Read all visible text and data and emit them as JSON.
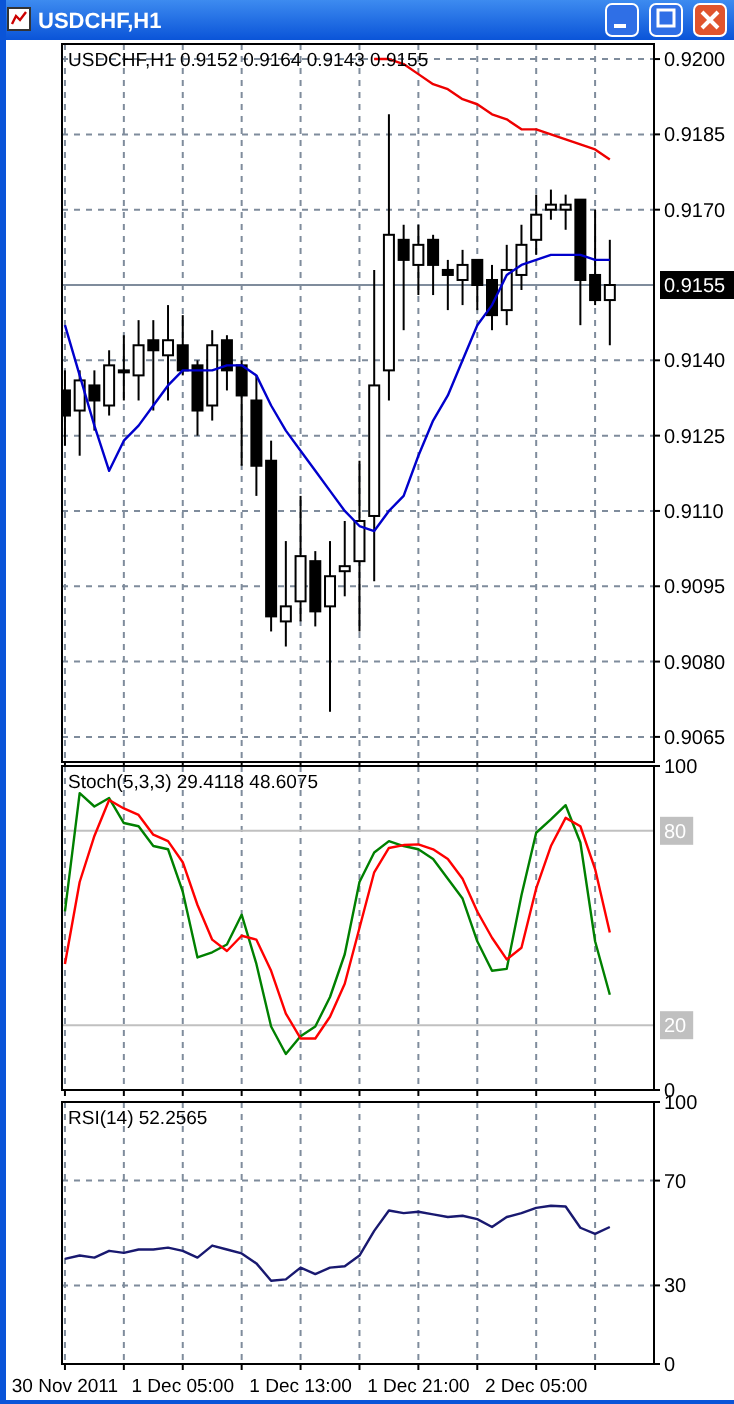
{
  "chart_data": [
    {
      "type": "candlestick",
      "title": "USDCHF,H1",
      "subtitle": "USDCHF,H1  0.9152 0.9164 0.9143 0.9155",
      "x": [
        "2011-11-30T21:00",
        "2011-11-30T22:00",
        "2011-11-30T23:00",
        "2011-12-01T00:00",
        "2011-12-01T01:00",
        "2011-12-01T02:00",
        "2011-12-01T03:00",
        "2011-12-01T04:00",
        "2011-12-01T05:00",
        "2011-12-01T06:00",
        "2011-12-01T07:00",
        "2011-12-01T08:00",
        "2011-12-01T09:00",
        "2011-12-01T10:00",
        "2011-12-01T11:00",
        "2011-12-01T12:00",
        "2011-12-01T13:00",
        "2011-12-01T14:00",
        "2011-12-01T15:00",
        "2011-12-01T16:00",
        "2011-12-01T17:00",
        "2011-12-01T18:00",
        "2011-12-01T19:00",
        "2011-12-01T20:00",
        "2011-12-01T21:00",
        "2011-12-01T22:00",
        "2011-12-01T23:00",
        "2011-12-02T00:00",
        "2011-12-02T01:00",
        "2011-12-02T02:00",
        "2011-12-02T03:00",
        "2011-12-02T04:00",
        "2011-12-02T05:00",
        "2011-12-02T06:00",
        "2011-12-02T07:00",
        "2011-12-02T08:00",
        "2011-12-02T09:00",
        "2011-12-02T10:00"
      ],
      "ohlc": [
        [
          0.9134,
          0.9138,
          0.9123,
          0.9129
        ],
        [
          0.913,
          0.9138,
          0.9121,
          0.9136
        ],
        [
          0.9135,
          0.9138,
          0.9126,
          0.9132
        ],
        [
          0.9131,
          0.9142,
          0.9129,
          0.9139
        ],
        [
          0.9138,
          0.9145,
          0.9132,
          0.9138
        ],
        [
          0.9137,
          0.9148,
          0.9132,
          0.9143
        ],
        [
          0.9144,
          0.9148,
          0.913,
          0.9142
        ],
        [
          0.9141,
          0.9151,
          0.9132,
          0.9144
        ],
        [
          0.9143,
          0.9149,
          0.9137,
          0.9138
        ],
        [
          0.9139,
          0.914,
          0.9125,
          0.913
        ],
        [
          0.9131,
          0.9146,
          0.9128,
          0.9143
        ],
        [
          0.9144,
          0.9145,
          0.9134,
          0.9138
        ],
        [
          0.9139,
          0.914,
          0.9119,
          0.9133
        ],
        [
          0.9132,
          0.9137,
          0.9113,
          0.9119
        ],
        [
          0.912,
          0.9124,
          0.9086,
          0.9089
        ],
        [
          0.9088,
          0.9104,
          0.9083,
          0.9091
        ],
        [
          0.9092,
          0.9113,
          0.9088,
          0.9101
        ],
        [
          0.91,
          0.9102,
          0.9087,
          0.909
        ],
        [
          0.9091,
          0.9104,
          0.907,
          0.9097
        ],
        [
          0.9098,
          0.9108,
          0.9093,
          0.9099
        ],
        [
          0.91,
          0.912,
          0.9086,
          0.9108
        ],
        [
          0.9109,
          0.9158,
          0.9096,
          0.9135
        ],
        [
          0.9138,
          0.9189,
          0.9132,
          0.9165
        ],
        [
          0.9164,
          0.9167,
          0.9146,
          0.916
        ],
        [
          0.9159,
          0.9167,
          0.9153,
          0.9163
        ],
        [
          0.9164,
          0.9165,
          0.9153,
          0.9159
        ],
        [
          0.9158,
          0.916,
          0.915,
          0.9157
        ],
        [
          0.9156,
          0.9162,
          0.9151,
          0.9159
        ],
        [
          0.916,
          0.916,
          0.915,
          0.9155
        ],
        [
          0.9156,
          0.9159,
          0.9146,
          0.9149
        ],
        [
          0.915,
          0.9163,
          0.9147,
          0.9158
        ],
        [
          0.9157,
          0.9167,
          0.9154,
          0.9163
        ],
        [
          0.9164,
          0.9173,
          0.9161,
          0.9169
        ],
        [
          0.917,
          0.9174,
          0.9168,
          0.9171
        ],
        [
          0.917,
          0.9173,
          0.9166,
          0.9171
        ],
        [
          0.9172,
          0.9172,
          0.9147,
          0.9156
        ],
        [
          0.9157,
          0.917,
          0.9151,
          0.9152
        ],
        [
          0.9152,
          0.9164,
          0.9143,
          0.9155
        ]
      ],
      "series": [
        {
          "type": "line",
          "color": "#0000cc",
          "values": [
            0.9147,
            0.9137,
            0.9127,
            0.9118,
            0.9124,
            0.9127,
            0.9131,
            0.9135,
            0.9138,
            0.9138,
            0.9138,
            0.9139,
            0.9139,
            0.9137,
            0.9131,
            0.9126,
            0.9122,
            0.9118,
            0.9114,
            0.911,
            0.9107,
            0.9106,
            0.911,
            0.9113,
            0.9121,
            0.9128,
            0.9133,
            0.914,
            0.9147,
            0.9151,
            0.9157,
            0.9159,
            0.916,
            0.9161,
            0.9161,
            0.9161,
            0.916,
            0.916
          ]
        },
        {
          "type": "line",
          "color": "#ee0000",
          "values": [
            null,
            null,
            null,
            null,
            null,
            null,
            null,
            null,
            null,
            null,
            null,
            null,
            null,
            null,
            null,
            null,
            null,
            null,
            null,
            null,
            null,
            0.92,
            0.92,
            0.9199,
            0.9197,
            0.9195,
            0.9194,
            0.9192,
            0.9191,
            0.9189,
            0.9188,
            0.9186,
            0.9186,
            0.9185,
            0.9184,
            0.9183,
            0.9182,
            0.918
          ]
        }
      ],
      "xlim": [
        "2011-11-30T20:48",
        "2011-12-02T13:00"
      ],
      "xticks": [
        {
          "value": "2011-11-30T21:00",
          "label": null
        },
        {
          "value": "2011-12-01T01:00",
          "label": null
        },
        {
          "value": "2011-12-01T05:00",
          "label": null
        },
        {
          "value": "2011-12-01T09:00",
          "label": null
        },
        {
          "value": "2011-12-01T13:00",
          "label": null
        },
        {
          "value": "2011-12-01T17:00",
          "label": null
        },
        {
          "value": "2011-12-01T21:00",
          "label": null
        },
        {
          "value": "2011-12-02T01:00",
          "label": null
        },
        {
          "value": "2011-12-02T05:00",
          "label": null
        },
        {
          "value": "2011-12-02T09:00",
          "label": null
        }
      ],
      "ylim": [
        0.906,
        0.9203
      ],
      "yticks": [
        {
          "value": 0.9065,
          "label": "0.9065"
        },
        {
          "value": 0.908,
          "label": "0.9080"
        },
        {
          "value": 0.9095,
          "label": "0.9095"
        },
        {
          "value": 0.911,
          "label": "0.9110"
        },
        {
          "value": 0.9125,
          "label": "0.9125"
        },
        {
          "value": 0.914,
          "label": "0.9140"
        },
        {
          "value": 0.917,
          "label": "0.9170"
        },
        {
          "value": 0.9185,
          "label": "0.9185"
        },
        {
          "value": 0.92,
          "label": "0.9200"
        }
      ],
      "ref_lines": [
        {
          "axis": "y",
          "value": 0.9155,
          "label": "0.9155",
          "color": "#7f8c9c"
        }
      ],
      "grid": true,
      "tick_labels": "y"
    },
    {
      "type": "line",
      "title": "Stoch(5,3,3) 29.4118 48.6075",
      "x": [
        "2011-11-30T21:00",
        "2011-11-30T22:00",
        "2011-11-30T23:00",
        "2011-12-01T00:00",
        "2011-12-01T01:00",
        "2011-12-01T02:00",
        "2011-12-01T03:00",
        "2011-12-01T04:00",
        "2011-12-01T05:00",
        "2011-12-01T06:00",
        "2011-12-01T07:00",
        "2011-12-01T08:00",
        "2011-12-01T09:00",
        "2011-12-01T10:00",
        "2011-12-01T11:00",
        "2011-12-01T12:00",
        "2011-12-01T13:00",
        "2011-12-01T14:00",
        "2011-12-01T15:00",
        "2011-12-01T16:00",
        "2011-12-01T17:00",
        "2011-12-01T18:00",
        "2011-12-01T19:00",
        "2011-12-01T20:00",
        "2011-12-01T21:00",
        "2011-12-01T22:00",
        "2011-12-01T23:00",
        "2011-12-02T00:00",
        "2011-12-02T01:00",
        "2011-12-02T02:00",
        "2011-12-02T03:00",
        "2011-12-02T04:00",
        "2011-12-02T05:00",
        "2011-12-02T06:00",
        "2011-12-02T07:00",
        "2011-12-02T08:00",
        "2011-12-02T09:00",
        "2011-12-02T10:00"
      ],
      "series": [
        {
          "color": "#008000",
          "values": [
            55.1,
            91.6,
            87.5,
            90.1,
            82.4,
            81.4,
            75.3,
            74.3,
            61.2,
            40.9,
            42.5,
            44.9,
            54.1,
            38.9,
            19.6,
            11.1,
            16.6,
            19.6,
            28.7,
            41.9,
            64.2,
            73.3,
            76.8,
            75.3,
            74.3,
            71.3,
            65.2,
            59.1,
            45.9,
            36.8,
            37.4,
            60.1,
            79.4,
            83.5,
            87.9,
            76.4,
            45.9,
            29.4
          ]
        },
        {
          "color": "#ff0000",
          "values": [
            38.9,
            64.2,
            78.4,
            89.5,
            86.9,
            84.9,
            78.8,
            76.8,
            70.3,
            57.1,
            46.4,
            42.9,
            47.6,
            46.4,
            36.8,
            23.6,
            15.9,
            15.9,
            22.6,
            32.8,
            50.0,
            67.2,
            74.7,
            75.6,
            75.8,
            74.3,
            71.3,
            65.2,
            55.1,
            47.0,
            40.3,
            43.9,
            62.2,
            75.3,
            84.0,
            81.4,
            68.2,
            48.6
          ]
        }
      ],
      "xlim": [
        "2011-11-30T20:48",
        "2011-12-02T13:00"
      ],
      "xticks": [
        {
          "value": "2011-11-30T21:00",
          "label": null
        },
        {
          "value": "2011-12-01T01:00",
          "label": null
        },
        {
          "value": "2011-12-01T05:00",
          "label": null
        },
        {
          "value": "2011-12-01T09:00",
          "label": null
        },
        {
          "value": "2011-12-01T13:00",
          "label": null
        },
        {
          "value": "2011-12-01T17:00",
          "label": null
        },
        {
          "value": "2011-12-01T21:00",
          "label": null
        },
        {
          "value": "2011-12-02T01:00",
          "label": null
        },
        {
          "value": "2011-12-02T05:00",
          "label": null
        },
        {
          "value": "2011-12-02T09:00",
          "label": null
        }
      ],
      "ylim": [
        0,
        100
      ],
      "yticks": [
        0,
        100
      ],
      "ref_lines": [
        {
          "axis": "y",
          "value": 80,
          "label": "80",
          "color": "#c0c0c0"
        },
        {
          "axis": "y",
          "value": 20,
          "label": "20",
          "color": "#c0c0c0"
        }
      ],
      "grid": "x",
      "tick_labels": "y"
    },
    {
      "type": "line",
      "title": "RSI(14) 52.2565",
      "x": [
        "2011-11-30T21:00",
        "2011-11-30T22:00",
        "2011-11-30T23:00",
        "2011-12-01T00:00",
        "2011-12-01T01:00",
        "2011-12-01T02:00",
        "2011-12-01T03:00",
        "2011-12-01T04:00",
        "2011-12-01T05:00",
        "2011-12-01T06:00",
        "2011-12-01T07:00",
        "2011-12-01T08:00",
        "2011-12-01T09:00",
        "2011-12-01T10:00",
        "2011-12-01T11:00",
        "2011-12-01T12:00",
        "2011-12-01T13:00",
        "2011-12-01T14:00",
        "2011-12-01T15:00",
        "2011-12-01T16:00",
        "2011-12-01T17:00",
        "2011-12-01T18:00",
        "2011-12-01T19:00",
        "2011-12-01T20:00",
        "2011-12-01T21:00",
        "2011-12-01T22:00",
        "2011-12-01T23:00",
        "2011-12-02T00:00",
        "2011-12-02T01:00",
        "2011-12-02T02:00",
        "2011-12-02T03:00",
        "2011-12-02T04:00",
        "2011-12-02T05:00",
        "2011-12-02T06:00",
        "2011-12-02T07:00",
        "2011-12-02T08:00",
        "2011-12-02T09:00",
        "2011-12-02T10:00"
      ],
      "series": [
        {
          "color": "#191970",
          "values": [
            40.1,
            41.4,
            40.6,
            43.2,
            42.4,
            43.7,
            43.7,
            44.4,
            43.2,
            40.6,
            45.2,
            43.7,
            42.2,
            38.4,
            31.8,
            32.3,
            36.8,
            34.3,
            36.8,
            37.3,
            41.4,
            50.8,
            58.6,
            57.6,
            58.1,
            57.1,
            56.1,
            56.6,
            55.3,
            52.3,
            56.1,
            57.6,
            59.6,
            60.4,
            60.1,
            52.0,
            49.7,
            52.3
          ]
        }
      ],
      "xlim": [
        "2011-11-30T20:48",
        "2011-12-02T13:00"
      ],
      "xticks": [
        {
          "value": "2011-11-30T21:00",
          "label": "30 Nov 2011"
        },
        {
          "value": "2011-12-01T01:00",
          "label": null
        },
        {
          "value": "2011-12-01T05:00",
          "label": "1 Dec 05:00"
        },
        {
          "value": "2011-12-01T09:00",
          "label": null
        },
        {
          "value": "2011-12-01T13:00",
          "label": "1 Dec 13:00"
        },
        {
          "value": "2011-12-01T17:00",
          "label": null
        },
        {
          "value": "2011-12-01T21:00",
          "label": "1 Dec 21:00"
        },
        {
          "value": "2011-12-02T01:00",
          "label": null
        },
        {
          "value": "2011-12-02T05:00",
          "label": "2 Dec 05:00"
        },
        {
          "value": "2011-12-02T09:00",
          "label": null
        }
      ],
      "ylim": [
        0,
        100
      ],
      "yticks": [
        0,
        30,
        70,
        100
      ],
      "grid": true
    }
  ]
}
